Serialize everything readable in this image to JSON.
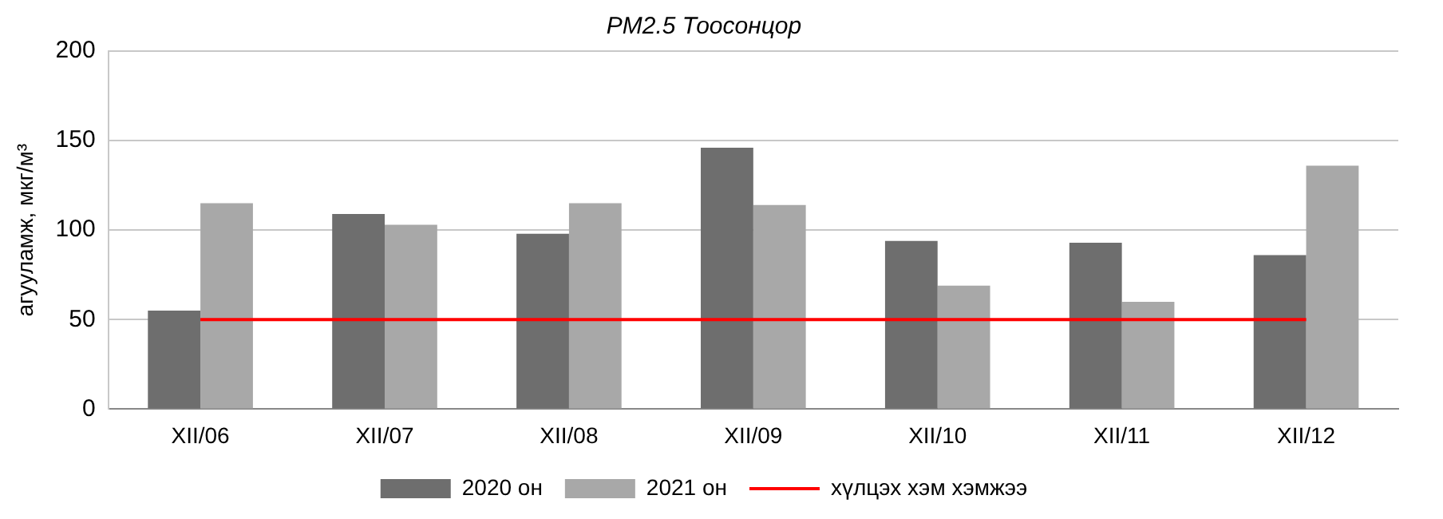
{
  "chart_data": {
    "type": "bar",
    "title": "PM2.5 Тоосонцор",
    "ylabel": "агууламж, мкг/м³",
    "categories": [
      "XII/06",
      "XII/07",
      "XII/08",
      "XII/09",
      "XII/10",
      "XII/11",
      "XII/12"
    ],
    "series": [
      {
        "name": "2020 он",
        "color": "#6e6e6e",
        "values": [
          55,
          109,
          98,
          146,
          94,
          93,
          86
        ]
      },
      {
        "name": "2021 он",
        "color": "#a8a8a8",
        "values": [
          115,
          103,
          115,
          114,
          69,
          60,
          136
        ]
      },
      {
        "name": "хүлцэх хэм хэмжээ",
        "type": "line",
        "color": "#ff0000",
        "values": [
          50,
          50,
          50,
          50,
          50,
          50,
          50
        ]
      }
    ],
    "ylim": [
      0,
      200
    ],
    "yticks": [
      0,
      50,
      100,
      150,
      200
    ],
    "grid": "y",
    "legend": "bottom",
    "marker": "none"
  }
}
